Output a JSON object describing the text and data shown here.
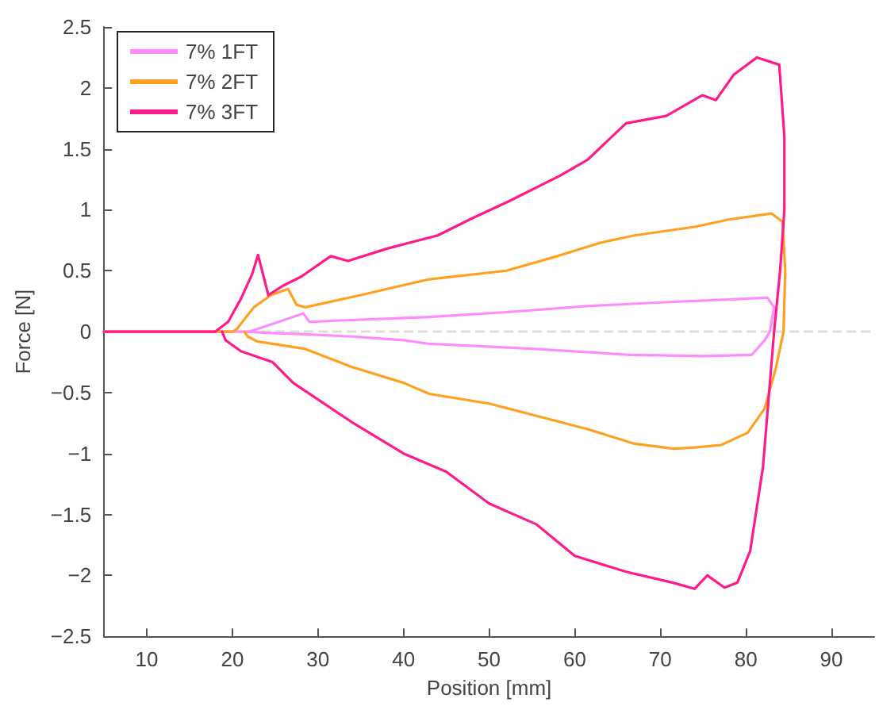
{
  "chart_data": {
    "type": "line",
    "xlabel": "Position [mm]",
    "ylabel": "Force [N]",
    "xlim": [
      5,
      95
    ],
    "xticks": [
      10,
      20,
      30,
      40,
      50,
      60,
      70,
      80,
      90
    ],
    "ylim": [
      -2.5,
      2.5
    ],
    "yticks": [
      {
        "value": -2.5,
        "label": "−2.5"
      },
      {
        "value": -2,
        "label": "−2"
      },
      {
        "value": -1.5,
        "label": "−1.5"
      },
      {
        "value": -1,
        "label": "−1"
      },
      {
        "value": -0.5,
        "label": "−0.5"
      },
      0,
      0.5,
      1,
      1.5,
      2,
      2.5
    ],
    "grid": false,
    "legend": "top left",
    "marker": "none",
    "line_style": "solid",
    "ref_lines": [
      {
        "axis": "y",
        "value": 0,
        "label": null,
        "color": "#dddddd",
        "line_style": "dashed"
      }
    ],
    "series": [
      {
        "name": "7% 1FT",
        "color": "#ff8cff",
        "x": [
          5,
          22,
          25,
          28.3,
          29,
          32,
          43,
          52,
          61.5,
          70,
          80,
          82.5,
          83.3,
          82.8,
          82.2,
          80.7,
          75,
          66.5,
          55,
          43,
          40,
          34,
          28,
          24,
          21.5
        ],
        "values": [
          0,
          0,
          0.07,
          0.15,
          0.08,
          0.09,
          0.12,
          0.16,
          0.21,
          0.24,
          0.27,
          0.28,
          0.2,
          0,
          -0.07,
          -0.19,
          -0.2,
          -0.19,
          -0.14,
          -0.1,
          -0.07,
          -0.04,
          -0.02,
          -0.01,
          0
        ]
      },
      {
        "name": "7% 2FT",
        "color": "#ffa020",
        "x": [
          5,
          20,
          20.5,
          22.5,
          24.5,
          26.5,
          27.5,
          28.5,
          35,
          43,
          52,
          58,
          63,
          67,
          74,
          78,
          83,
          84.3,
          84.6,
          84.4,
          83.5,
          82.2,
          80.2,
          77.1,
          74,
          71.6,
          67,
          61.5,
          50,
          43,
          40,
          34,
          28.4,
          22.9,
          21.8,
          21.4
        ],
        "values": [
          0,
          0,
          0.02,
          0.2,
          0.3,
          0.35,
          0.22,
          0.2,
          0.3,
          0.43,
          0.5,
          0.62,
          0.73,
          0.79,
          0.86,
          0.92,
          0.97,
          0.9,
          0.5,
          0,
          -0.3,
          -0.63,
          -0.83,
          -0.93,
          -0.95,
          -0.96,
          -0.92,
          -0.8,
          -0.59,
          -0.51,
          -0.42,
          -0.29,
          -0.14,
          -0.08,
          -0.04,
          0
        ]
      },
      {
        "name": "7% 3FT",
        "color": "#ff1a8c",
        "x": [
          5,
          18,
          19.5,
          21,
          22.3,
          23,
          24.2,
          26,
          28,
          31.5,
          33.5,
          38,
          44,
          48,
          52.3,
          58.3,
          61.5,
          66,
          70.7,
          74.9,
          76.5,
          78.6,
          81.3,
          83.9,
          84.5,
          84.5,
          84,
          83.3,
          82,
          80.5,
          79,
          77.5,
          75.5,
          74,
          71.5,
          66,
          60,
          55.5,
          50,
          45,
          40,
          33.9,
          27.1,
          24.7,
          21,
          19.2,
          18.8
        ],
        "values": [
          0,
          0,
          0.08,
          0.27,
          0.47,
          0.63,
          0.3,
          0.38,
          0.45,
          0.62,
          0.58,
          0.68,
          0.79,
          0.93,
          1.07,
          1.28,
          1.41,
          1.71,
          1.77,
          1.94,
          1.9,
          2.11,
          2.25,
          2.19,
          1.6,
          1,
          0.5,
          0,
          -1.11,
          -1.8,
          -2.06,
          -2.1,
          -2.0,
          -2.11,
          -2.06,
          -1.97,
          -1.84,
          -1.58,
          -1.41,
          -1.15,
          -1.0,
          -0.74,
          -0.42,
          -0.25,
          -0.16,
          -0.07,
          0
        ]
      }
    ]
  }
}
